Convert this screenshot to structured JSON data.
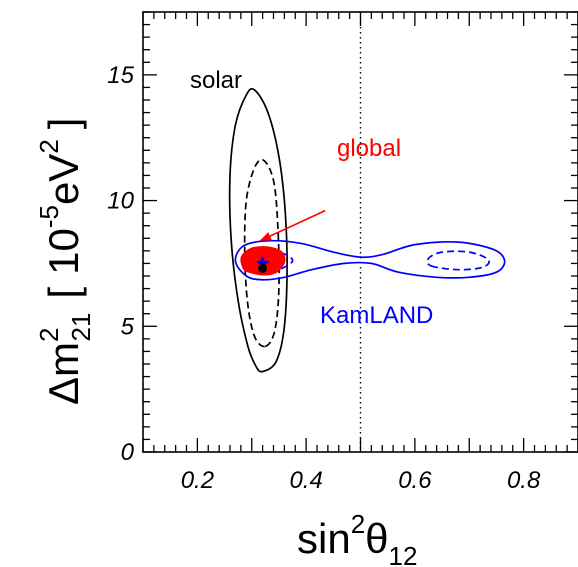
{
  "chart_data": {
    "type": "contour",
    "xlabel": {
      "main": "sin",
      "sup": "2",
      "theta": "θ",
      "sub": "12"
    },
    "ylabel": {
      "delta": "Δm",
      "sup": "2",
      "sub": "21",
      "bracket_open": "[",
      "unit_base": "10",
      "unit_exp": "-5",
      "unit": "eV",
      "unit_sup": "2",
      "bracket_close": "]"
    },
    "xlim": [
      0.1,
      0.9
    ],
    "ylim": [
      0,
      17.5
    ],
    "x_ticks": [
      {
        "value": 0.2,
        "label": "0.2"
      },
      {
        "value": 0.4,
        "label": "0.4"
      },
      {
        "value": 0.6,
        "label": "0.6"
      },
      {
        "value": 0.8,
        "label": "0.8"
      }
    ],
    "y_ticks": [
      {
        "value": 0,
        "label": "0"
      },
      {
        "value": 5,
        "label": "5"
      },
      {
        "value": 10,
        "label": "10"
      },
      {
        "value": 15,
        "label": "15"
      }
    ],
    "reference_line": {
      "x": 0.5,
      "style": "dotted"
    },
    "annotations": {
      "solar": {
        "text": "solar",
        "color": "#000000"
      },
      "global": {
        "text": "global",
        "color": "#ff0000"
      },
      "kamland": {
        "text": "KamLAND",
        "color": "#0000ff"
      }
    },
    "series": [
      {
        "color": "#000000",
        "contours": [
          {
            "style": "solid",
            "points": [
              [
                0.32,
                3.2
              ],
              [
                0.345,
                3.6
              ],
              [
                0.36,
                5.0
              ],
              [
                0.365,
                7.5
              ],
              [
                0.36,
                10.0
              ],
              [
                0.348,
                12.0
              ],
              [
                0.328,
                13.6
              ],
              [
                0.305,
                14.4
              ],
              [
                0.29,
                14.2
              ],
              [
                0.27,
                13.0
              ],
              [
                0.26,
                11.0
              ],
              [
                0.262,
                8.5
              ],
              [
                0.275,
                6.0
              ],
              [
                0.293,
                4.2
              ],
              [
                0.308,
                3.4
              ],
              [
                0.32,
                3.2
              ]
            ]
          },
          {
            "style": "dashed",
            "points": [
              [
                0.325,
                4.2
              ],
              [
                0.342,
                4.8
              ],
              [
                0.35,
                6.5
              ],
              [
                0.348,
                9.0
              ],
              [
                0.34,
                10.8
              ],
              [
                0.322,
                11.6
              ],
              [
                0.305,
                11.3
              ],
              [
                0.29,
                10.0
              ],
              [
                0.287,
                8.0
              ],
              [
                0.292,
                6.0
              ],
              [
                0.305,
                4.6
              ],
              [
                0.325,
                4.2
              ]
            ]
          }
        ]
      },
      {
        "color": "#0000ff",
        "contours": [
          {
            "style": "solid",
            "points": [
              [
                0.29,
                7.0
              ],
              [
                0.32,
                6.85
              ],
              [
                0.36,
                6.95
              ],
              [
                0.41,
                7.25
              ],
              [
                0.47,
                7.5
              ],
              [
                0.52,
                7.5
              ],
              [
                0.57,
                7.15
              ],
              [
                0.64,
                6.95
              ],
              [
                0.7,
                6.95
              ],
              [
                0.75,
                7.15
              ],
              [
                0.765,
                7.6
              ],
              [
                0.745,
                8.05
              ],
              [
                0.68,
                8.35
              ],
              [
                0.6,
                8.25
              ],
              [
                0.54,
                7.85
              ],
              [
                0.5,
                7.75
              ],
              [
                0.45,
                7.95
              ],
              [
                0.39,
                8.3
              ],
              [
                0.33,
                8.4
              ],
              [
                0.285,
                8.2
              ],
              [
                0.27,
                7.6
              ],
              [
                0.29,
                7.0
              ]
            ]
          },
          {
            "style": "dashed",
            "points": [
              [
                0.295,
                7.25
              ],
              [
                0.33,
                7.15
              ],
              [
                0.36,
                7.35
              ],
              [
                0.375,
                7.65
              ],
              [
                0.35,
                7.95
              ],
              [
                0.31,
                8.0
              ],
              [
                0.288,
                7.7
              ],
              [
                0.295,
                7.25
              ]
            ]
          },
          {
            "style": "dashed",
            "points": [
              [
                0.63,
                7.4
              ],
              [
                0.68,
                7.25
              ],
              [
                0.725,
                7.35
              ],
              [
                0.735,
                7.65
              ],
              [
                0.7,
                7.95
              ],
              [
                0.65,
                7.95
              ],
              [
                0.625,
                7.7
              ],
              [
                0.63,
                7.4
              ]
            ]
          }
        ]
      },
      {
        "color": "#ff0000",
        "contours": [
          {
            "style": "filled",
            "points": [
              [
                0.29,
                7.2
              ],
              [
                0.32,
                7.05
              ],
              [
                0.345,
                7.15
              ],
              [
                0.36,
                7.55
              ],
              [
                0.355,
                7.95
              ],
              [
                0.33,
                8.15
              ],
              [
                0.3,
                8.1
              ],
              [
                0.282,
                7.8
              ],
              [
                0.282,
                7.45
              ],
              [
                0.29,
                7.2
              ]
            ]
          }
        ]
      }
    ],
    "best_fit": [
      {
        "x": 0.32,
        "y": 7.5,
        "marker": "star",
        "color": "#0000ff"
      },
      {
        "x": 0.32,
        "y": 7.3,
        "marker": "circle",
        "color": "#000000"
      }
    ],
    "arrow": {
      "from": [
        0.435,
        9.6
      ],
      "to": [
        0.315,
        8.4
      ],
      "color": "#ff0000"
    },
    "grid": false,
    "legend": "none"
  }
}
